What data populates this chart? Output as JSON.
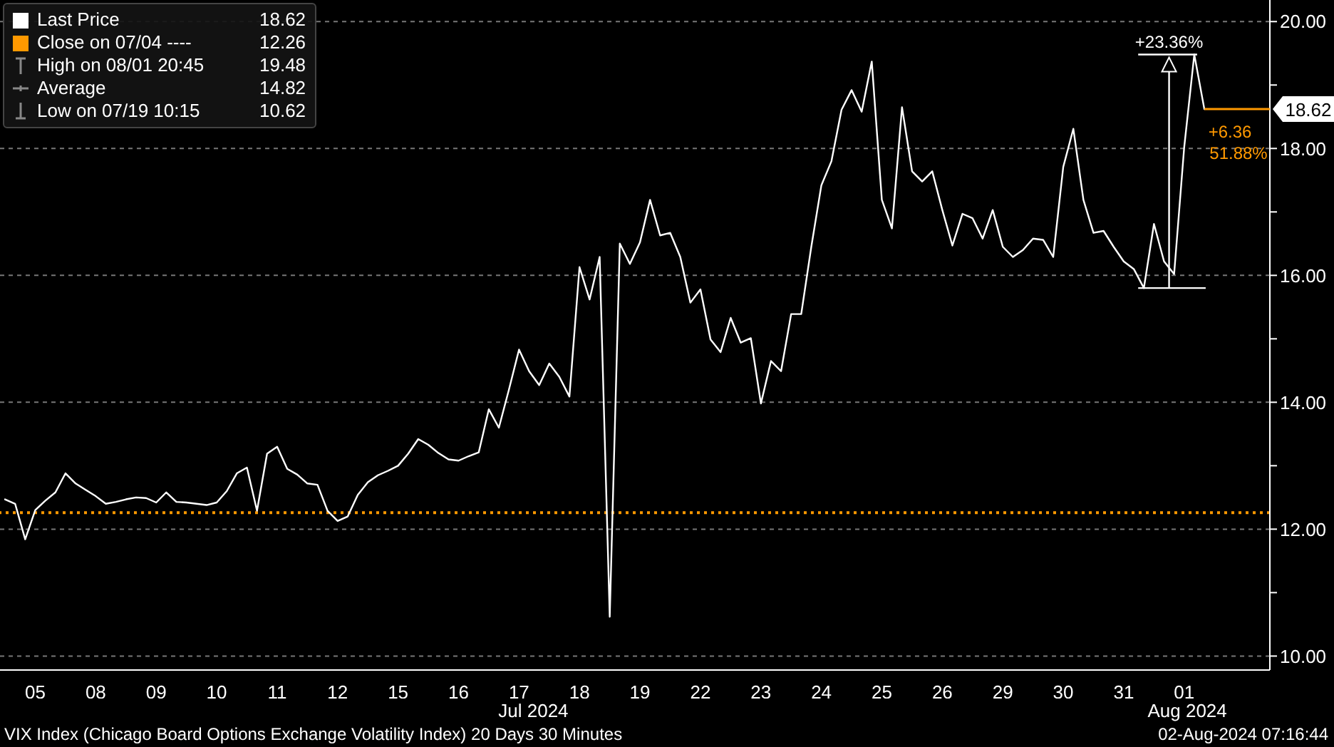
{
  "chart_data": {
    "type": "line",
    "categories": [
      null,
      null,
      null,
      "05",
      null,
      null,
      null,
      null,
      null,
      "08",
      null,
      null,
      null,
      null,
      null,
      "09",
      null,
      null,
      null,
      null,
      null,
      "10",
      null,
      null,
      null,
      null,
      null,
      "11",
      null,
      null,
      null,
      null,
      null,
      "12",
      null,
      null,
      null,
      null,
      null,
      "15",
      null,
      null,
      null,
      null,
      null,
      "16",
      null,
      null,
      null,
      null,
      null,
      "17",
      null,
      null,
      null,
      null,
      null,
      "18",
      null,
      null,
      null,
      null,
      null,
      "19",
      null,
      null,
      null,
      null,
      null,
      "22",
      null,
      null,
      null,
      null,
      null,
      "23",
      null,
      null,
      null,
      null,
      null,
      "24",
      null,
      null,
      null,
      null,
      null,
      "25",
      null,
      null,
      null,
      null,
      null,
      "26",
      null,
      null,
      null,
      null,
      null,
      "29",
      null,
      null,
      null,
      null,
      null,
      "30",
      null,
      null,
      null,
      null,
      null,
      "31",
      null,
      null,
      null,
      null,
      null,
      "01",
      null,
      null,
      null,
      null,
      null,
      null,
      null,
      null
    ],
    "series": [
      {
        "name": "Last Price",
        "color": "#ffffff",
        "values": [
          12.47,
          12.4,
          11.84,
          12.3,
          12.45,
          12.58,
          12.88,
          12.72,
          12.62,
          12.52,
          12.4,
          12.43,
          12.47,
          12.5,
          12.49,
          12.42,
          12.58,
          12.43,
          12.42,
          12.4,
          12.38,
          12.42,
          12.6,
          12.88,
          12.97,
          12.29,
          13.19,
          13.3,
          12.95,
          12.86,
          12.72,
          12.7,
          12.29,
          12.13,
          12.2,
          12.54,
          12.74,
          12.85,
          12.92,
          13.0,
          13.19,
          13.42,
          13.33,
          13.2,
          13.1,
          13.08,
          13.15,
          13.21,
          13.89,
          13.6,
          14.2,
          14.83,
          14.49,
          14.27,
          14.61,
          14.4,
          14.09,
          16.13,
          15.62,
          16.29,
          10.62,
          16.5,
          16.18,
          16.52,
          17.19,
          16.63,
          16.67,
          16.29,
          15.57,
          15.78,
          14.99,
          14.79,
          15.33,
          14.94,
          15.01,
          13.98,
          14.65,
          14.49,
          15.39,
          15.39,
          16.45,
          17.42,
          17.8,
          18.61,
          18.92,
          18.58,
          19.37,
          17.19,
          16.74,
          18.65,
          17.64,
          17.48,
          17.64,
          17.03,
          16.47,
          16.97,
          16.9,
          16.58,
          17.03,
          16.45,
          16.29,
          16.4,
          16.58,
          16.56,
          16.29,
          17.71,
          18.31,
          17.19,
          16.67,
          16.7,
          16.45,
          16.22,
          16.1,
          15.8,
          16.81,
          16.22,
          16.02,
          18.02,
          19.48,
          18.62,
          null,
          null,
          null,
          null,
          null,
          null
        ]
      }
    ],
    "ylim": [
      9.78,
      20.34
    ],
    "yticks": [
      {
        "value": 10,
        "label": "10.00"
      },
      {
        "value": 11,
        "label": null
      },
      {
        "value": 12,
        "label": "12.00"
      },
      {
        "value": 13,
        "label": null
      },
      {
        "value": 14,
        "label": "14.00"
      },
      {
        "value": 15,
        "label": null
      },
      {
        "value": 16,
        "label": "16.00"
      },
      {
        "value": 17,
        "label": null
      },
      {
        "value": 18,
        "label": "18.00"
      },
      {
        "value": 19,
        "label": null
      },
      {
        "value": 20,
        "label": "20.00"
      }
    ],
    "grid": "y",
    "legend": "top left",
    "marker": "none",
    "ref_lines": [
      {
        "axis": "y",
        "value": 12.26,
        "label": "Close on 07/04 ----",
        "color": "#ff9900",
        "line_style": "dotted"
      },
      {
        "axis": "y",
        "value": 18.62,
        "label": "18.62",
        "color": "#ff9900",
        "line_style": "solid"
      }
    ],
    "annotations": [
      "18.62",
      "12.26",
      "High on 08/01 20:45",
      "19.48",
      "Average",
      "14.82",
      "Low on 07/19 10:15",
      "10.62",
      "+23.36%",
      "+6.36",
      "51.88%",
      "Jul 2024",
      "Aug 2024",
      "VIX Index (Chicago Board Options Exchange Volatility Index) 20 Days 30 Minutes",
      "02-Aug-2024 07:16:44"
    ]
  }
}
